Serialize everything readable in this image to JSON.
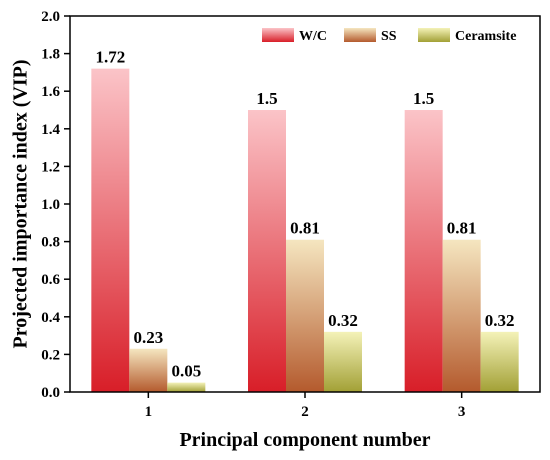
{
  "chart_data": {
    "type": "bar",
    "categories": [
      "1",
      "2",
      "3"
    ],
    "series": [
      {
        "name": "W/C",
        "values": [
          1.72,
          1.5,
          1.5
        ],
        "labels": [
          "1.72",
          "1.5",
          "1.5"
        ],
        "color_top": "#fbc4c8",
        "color_bottom": "#d81e28"
      },
      {
        "name": "SS",
        "values": [
          0.23,
          0.81,
          0.81
        ],
        "labels": [
          "0.23",
          "0.81",
          "0.81"
        ],
        "color_top": "#f5e6c0",
        "color_bottom": "#b45a2d"
      },
      {
        "name": "Ceramsite",
        "values": [
          0.05,
          0.32,
          0.32
        ],
        "labels": [
          "0.05",
          "0.32",
          "0.32"
        ],
        "color_top": "#f4f2b8",
        "color_bottom": "#a2a035"
      }
    ],
    "xlabel": "Principal component number",
    "ylabel": "Projected importance index (VIP)",
    "ylim": [
      0,
      2.0
    ],
    "yticks": [
      "0.0",
      "0.2",
      "0.4",
      "0.6",
      "0.8",
      "1.0",
      "1.2",
      "1.4",
      "1.6",
      "1.8",
      "2.0"
    ],
    "legend_position": "top-right",
    "grid": false
  }
}
